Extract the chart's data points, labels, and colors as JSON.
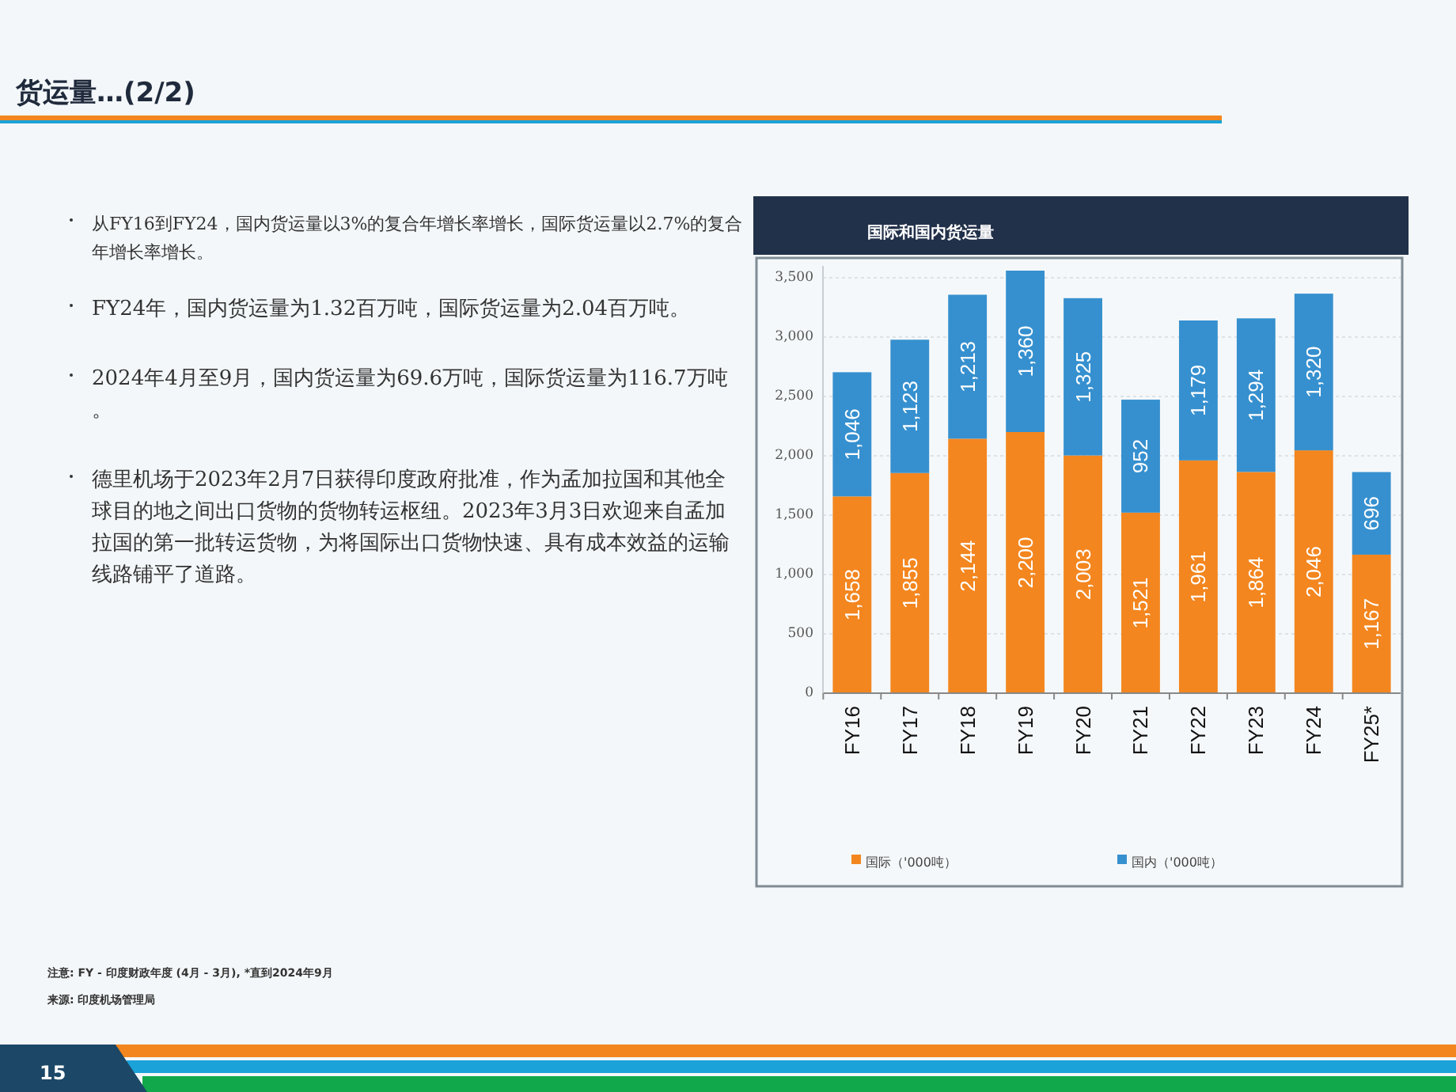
{
  "chart_data": {
    "type": "bar",
    "stacked": true,
    "title": "货运量…(2/2)",
    "subtitle": "国际和国内货运量",
    "categories": [
      "FY16",
      "FY17",
      "FY18",
      "FY19",
      "FY20",
      "FY21",
      "FY22",
      "FY23",
      "FY24",
      "FY25*"
    ],
    "series": [
      {
        "name": "国际（'000吨）",
        "color": "#f3861f",
        "values": [
          1658,
          1855,
          2144,
          2200,
          2003,
          1521,
          1961,
          1864,
          2046,
          1167
        ],
        "value_labels": [
          "1,658",
          "1,855",
          "2,144",
          "2,200",
          "2,003",
          "1,521",
          "1,961",
          "1,864",
          "2,046",
          "1,167"
        ]
      },
      {
        "name": "国内（'000吨）",
        "color": "#3690cf",
        "values": [
          1046,
          1123,
          1213,
          1360,
          1325,
          952,
          1179,
          1294,
          1320,
          696
        ],
        "value_labels": [
          "1,046",
          "1,123",
          "1,213",
          "1,360",
          "1,325",
          "952",
          "1,179",
          "1,294",
          "1,320",
          "696"
        ]
      }
    ],
    "ylim": [
      0,
      3600
    ],
    "yticks": [
      0,
      500,
      {
        "value": 1000,
        "label": "1,000"
      },
      {
        "value": 1500,
        "label": "1,500"
      },
      {
        "value": 2000,
        "label": "2,000"
      },
      {
        "value": 2500,
        "label": "2,500"
      },
      {
        "value": 3000,
        "label": "3,000"
      },
      {
        "value": 3500,
        "label": "3,500"
      }
    ],
    "grid": "y",
    "legend": "bottom",
    "annotations": [
      "从FY16到FY24，国内货运量以3%的复合年增长率增长，国际货运量以2.7%的复合年增长率增长。",
      "FY24年，国内货运量为1.32百万吨，国际货运量为2.04百万吨。",
      "2024年4月至9月，国内货运量为69.6万吨，国际货运量为116.7万吨。",
      "德里机场于2023年2月7日获得印度政府批准，作为孟加拉国和其他全球目的地之间出口货物的货物转运枢纽。2023年3月3日欢迎来自孟加拉国的第一批转运货物，为将国际出口货物快速、具有成本效益的运输线路铺平了道路。",
      "注意: FY - 印度财政年度 (4月 - 3月), *直到2024年9月",
      "来源: 印度机场管理局",
      "15"
    ]
  }
}
